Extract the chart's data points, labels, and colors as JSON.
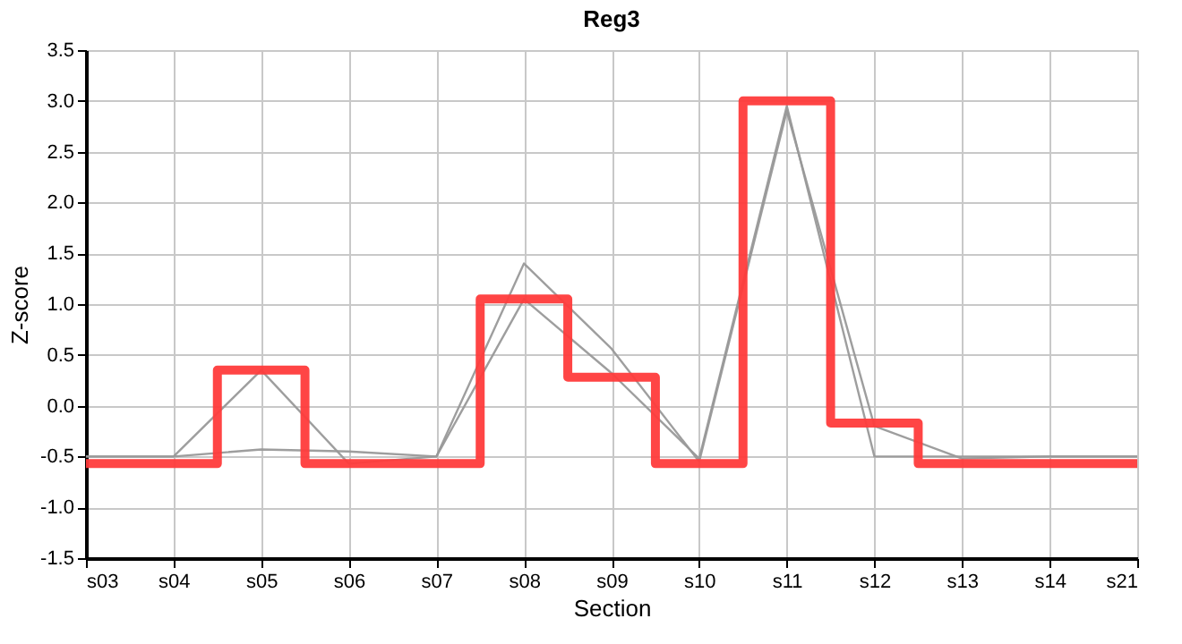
{
  "chart_data": {
    "type": "line",
    "title": "Reg3",
    "xlabel": "Section",
    "ylabel": "Z-score",
    "categories": [
      "s03",
      "s04",
      "s05",
      "s06",
      "s07",
      "s08",
      "s09",
      "s10",
      "s11",
      "s12",
      "s13",
      "s14",
      "s21"
    ],
    "series": [
      {
        "color": "#999999",
        "values": [
          -0.5,
          -0.5,
          0.35,
          -0.57,
          -0.5,
          1.05,
          0.32,
          -0.52,
          2.95,
          -0.5,
          -0.5,
          -0.5,
          -0.5
        ]
      },
      {
        "color": "#999999",
        "values": [
          -0.5,
          -0.5,
          -0.43,
          -0.45,
          -0.5,
          1.4,
          0.56,
          -0.55,
          2.9,
          -0.2,
          -0.52,
          -0.5,
          -0.5
        ]
      },
      {
        "type": "step",
        "color": "#ff3b3b",
        "values": [
          -0.57,
          -0.57,
          0.35,
          -0.57,
          -0.57,
          1.05,
          0.28,
          -0.57,
          3.0,
          -0.17,
          -0.57,
          -0.57,
          -0.57
        ]
      }
    ],
    "ylim": [
      -1.5,
      3.5
    ],
    "yticks": [
      {
        "value": -1.5,
        "label": "-1.5"
      },
      {
        "value": -1.0,
        "label": "-1.0"
      },
      {
        "value": -0.5,
        "label": "-0.5"
      },
      {
        "value": 0,
        "label": "0.0"
      },
      {
        "value": 0.5,
        "label": "0.5"
      },
      {
        "value": 1.0,
        "label": "1.0"
      },
      {
        "value": 1.5,
        "label": "1.5"
      },
      {
        "value": 2.0,
        "label": "2.0"
      },
      {
        "value": 2.5,
        "label": "2.5"
      },
      {
        "value": 3.0,
        "label": "3.0"
      },
      {
        "value": 3.5,
        "label": "3.5"
      }
    ],
    "grid": true,
    "marker": "none",
    "line_style": "solid"
  }
}
